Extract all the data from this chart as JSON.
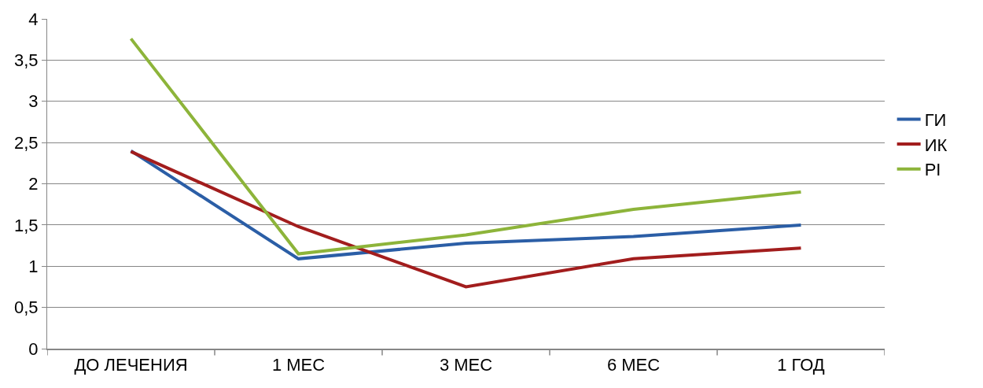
{
  "chart_data": {
    "type": "line",
    "categories": [
      "ДО ЛЕЧЕНИЯ",
      "1 МЕС",
      "3 МЕС",
      "6 МЕС",
      "1 ГОД"
    ],
    "series": [
      {
        "name": "ГИ",
        "color": "#2b5ea6",
        "values": [
          2.4,
          1.09,
          1.28,
          1.36,
          1.5
        ]
      },
      {
        "name": "ИК",
        "color": "#a21d1d",
        "values": [
          2.39,
          1.48,
          0.75,
          1.09,
          1.22
        ]
      },
      {
        "name": "PI",
        "color": "#8db43a",
        "values": [
          3.76,
          1.15,
          1.38,
          1.69,
          1.9
        ]
      }
    ],
    "ylim": [
      0,
      4
    ],
    "yticks": [
      0,
      {
        "value": 0.5,
        "label": "0,5"
      },
      1,
      {
        "value": 1.5,
        "label": "1,5"
      },
      2,
      {
        "value": 2.5,
        "label": "2,5"
      },
      3,
      {
        "value": 3.5,
        "label": "3,5"
      },
      4
    ],
    "grid": "y",
    "legend": "right",
    "marker": "none",
    "line_style": "solid"
  }
}
